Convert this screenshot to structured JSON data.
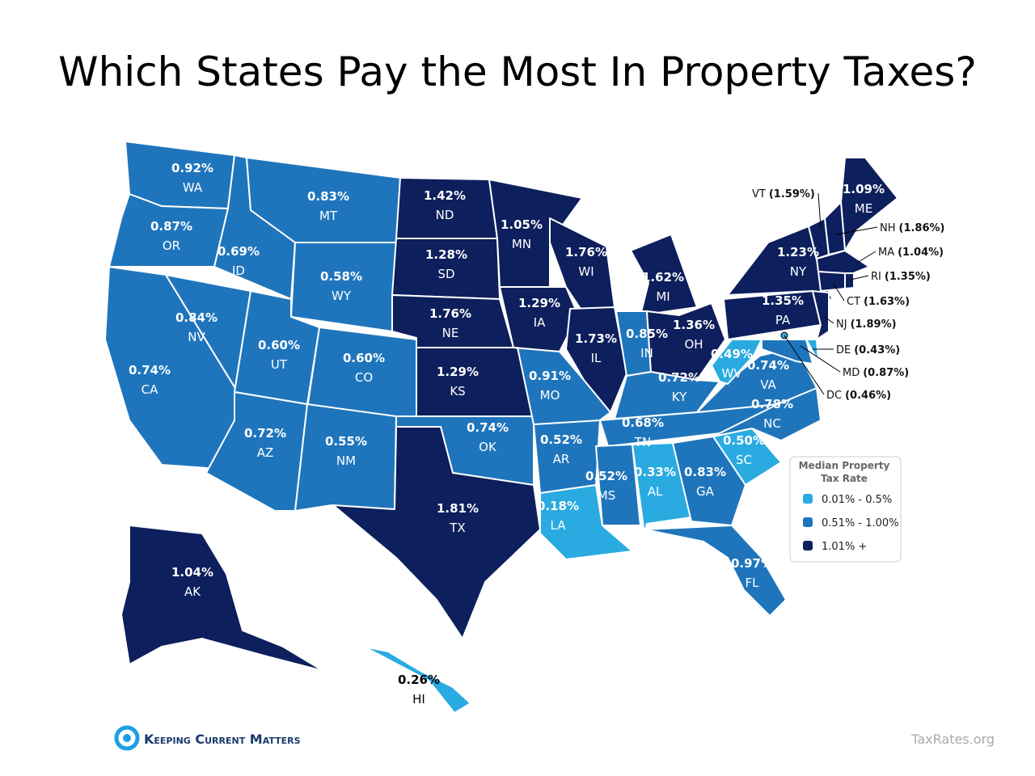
{
  "title": "Which States Pay the Most In Property Taxes?",
  "states": [
    {
      "abbr": "WA",
      "rate": "0.92%",
      "tier": 1
    },
    {
      "abbr": "OR",
      "rate": "0.87%",
      "tier": 1
    },
    {
      "abbr": "CA",
      "rate": "0.74%",
      "tier": 1
    },
    {
      "abbr": "NV",
      "rate": "0.84%",
      "tier": 1
    },
    {
      "abbr": "ID",
      "rate": "0.69%",
      "tier": 1
    },
    {
      "abbr": "MT",
      "rate": "0.83%",
      "tier": 1
    },
    {
      "abbr": "WY",
      "rate": "0.58%",
      "tier": 1
    },
    {
      "abbr": "UT",
      "rate": "0.60%",
      "tier": 1
    },
    {
      "abbr": "CO",
      "rate": "0.60%",
      "tier": 1
    },
    {
      "abbr": "AZ",
      "rate": "0.72%",
      "tier": 1
    },
    {
      "abbr": "NM",
      "rate": "0.55%",
      "tier": 1
    },
    {
      "abbr": "ND",
      "rate": "1.42%",
      "tier": 2
    },
    {
      "abbr": "SD",
      "rate": "1.28%",
      "tier": 2
    },
    {
      "abbr": "NE",
      "rate": "1.76%",
      "tier": 2
    },
    {
      "abbr": "KS",
      "rate": "1.29%",
      "tier": 2
    },
    {
      "abbr": "OK",
      "rate": "0.74%",
      "tier": 1
    },
    {
      "abbr": "TX",
      "rate": "1.81%",
      "tier": 2
    },
    {
      "abbr": "MN",
      "rate": "1.05%",
      "tier": 2
    },
    {
      "abbr": "IA",
      "rate": "1.29%",
      "tier": 2
    },
    {
      "abbr": "MO",
      "rate": "0.91%",
      "tier": 1
    },
    {
      "abbr": "AR",
      "rate": "0.52%",
      "tier": 1
    },
    {
      "abbr": "LA",
      "rate": "0.18%",
      "tier": 0
    },
    {
      "abbr": "WI",
      "rate": "1.76%",
      "tier": 2
    },
    {
      "abbr": "IL",
      "rate": "1.73%",
      "tier": 2
    },
    {
      "abbr": "MI",
      "rate": "1.62%",
      "tier": 2
    },
    {
      "abbr": "IN",
      "rate": "0.85%",
      "tier": 1
    },
    {
      "abbr": "OH",
      "rate": "1.36%",
      "tier": 2
    },
    {
      "abbr": "KY",
      "rate": "0.72%",
      "tier": 1
    },
    {
      "abbr": "TN",
      "rate": "0.68%",
      "tier": 1
    },
    {
      "abbr": "MS",
      "rate": "0.52%",
      "tier": 1
    },
    {
      "abbr": "AL",
      "rate": "0.33%",
      "tier": 0
    },
    {
      "abbr": "GA",
      "rate": "0.83%",
      "tier": 1
    },
    {
      "abbr": "FL",
      "rate": "0.97%",
      "tier": 1
    },
    {
      "abbr": "SC",
      "rate": "0.50%",
      "tier": 0
    },
    {
      "abbr": "NC",
      "rate": "0.78%",
      "tier": 1
    },
    {
      "abbr": "VA",
      "rate": "0.74%",
      "tier": 1
    },
    {
      "abbr": "WV",
      "rate": "0.49%",
      "tier": 0
    },
    {
      "abbr": "PA",
      "rate": "1.35%",
      "tier": 2
    },
    {
      "abbr": "NY",
      "rate": "1.23%",
      "tier": 2
    },
    {
      "abbr": "ME",
      "rate": "1.09%",
      "tier": 2
    },
    {
      "abbr": "AK",
      "rate": "1.04%",
      "tier": 2
    },
    {
      "abbr": "HI",
      "rate": "0.26%",
      "tier": 0
    }
  ],
  "callouts": [
    {
      "abbr": "VT",
      "rate": "(1.59%)",
      "tier": 2
    },
    {
      "abbr": "NH",
      "rate": "(1.86%)",
      "tier": 2
    },
    {
      "abbr": "MA",
      "rate": "(1.04%)",
      "tier": 2
    },
    {
      "abbr": "RI",
      "rate": "(1.35%)",
      "tier": 2
    },
    {
      "abbr": "CT",
      "rate": "(1.63%)",
      "tier": 2
    },
    {
      "abbr": "NJ",
      "rate": "(1.89%)",
      "tier": 2
    },
    {
      "abbr": "DE",
      "rate": "(0.43%)",
      "tier": 0
    },
    {
      "abbr": "MD",
      "rate": "(0.87%)",
      "tier": 1
    },
    {
      "abbr": "DC",
      "rate": "(0.46%)",
      "tier": 0
    }
  ],
  "legend": {
    "title": [
      "Median Property",
      "Tax Rate"
    ],
    "items": [
      {
        "label": "0.01% - 0.5%",
        "color": "#29abe2"
      },
      {
        "label": "0.51% - 1.00%",
        "color": "#1f75bc"
      },
      {
        "label": "1.01% +",
        "color": "#0d1f5c"
      }
    ]
  },
  "footer": {
    "brand": "Keeping Current Matters",
    "source": "TaxRates.org"
  }
}
